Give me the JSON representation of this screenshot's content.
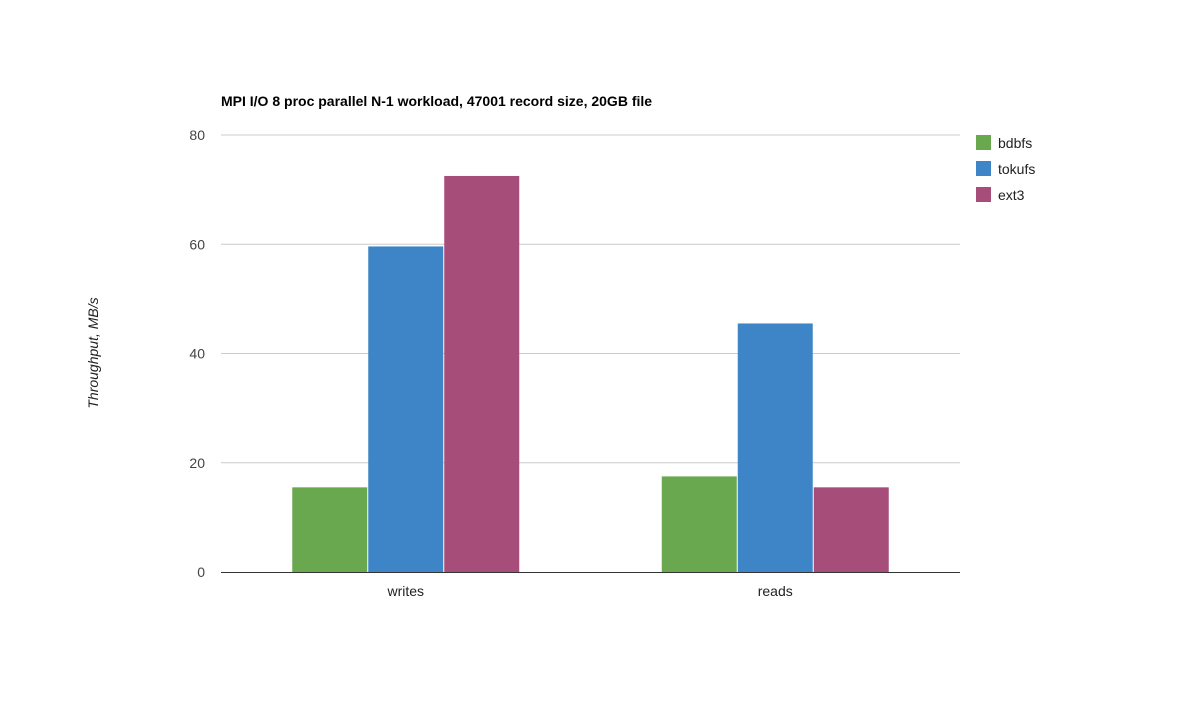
{
  "chart_data": {
    "type": "bar",
    "title": "MPI I/O 8 proc parallel N-1 workload, 47001 record size, 20GB file",
    "xlabel": "",
    "ylabel": "Throughput, MB/s",
    "categories": [
      "writes",
      "reads"
    ],
    "series": [
      {
        "name": "bdbfs",
        "color": "#6aa84f",
        "values": [
          15.5,
          17.5
        ]
      },
      {
        "name": "tokufs",
        "color": "#3d85c6",
        "values": [
          59.6,
          45.5
        ]
      },
      {
        "name": "ext3",
        "color": "#a64d79",
        "values": [
          72.5,
          15.5
        ]
      }
    ],
    "ylim": [
      0,
      80
    ],
    "yticks": [
      0,
      20,
      40,
      60,
      80
    ],
    "grid": true,
    "legend": "right"
  }
}
